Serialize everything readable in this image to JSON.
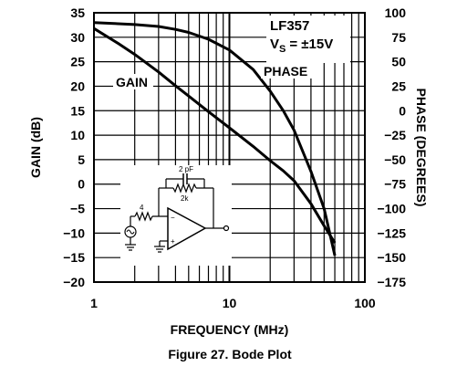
{
  "chart_data": {
    "type": "line",
    "title": "",
    "caption": "Figure 27. Bode Plot",
    "xlabel": "FREQUENCY (MHz)",
    "ylabel": "GAIN (dB)",
    "y2label": "PHASE (DEGREES)",
    "xscale": "log",
    "xlim": [
      1,
      100
    ],
    "ylim": [
      -20,
      35
    ],
    "y2lim": [
      -175,
      100
    ],
    "grid": true,
    "x_ticks": [
      "1",
      "10",
      "100"
    ],
    "y_ticks": [
      "35",
      "30",
      "25",
      "20",
      "15",
      "10",
      "5",
      "0",
      "-5",
      "-10",
      "-15",
      "-20"
    ],
    "y2_ticks": [
      "100",
      "75",
      "50",
      "25",
      "0",
      "-25",
      "-50",
      "-75",
      "-100",
      "-125",
      "-150",
      "-175"
    ],
    "annotations": {
      "device": "LF357",
      "supply_prefix": "V",
      "supply_sub": "S",
      "supply_value": "= ±15V",
      "schematic_cap": "2 pF",
      "schematic_rf": "2k",
      "schematic_rin": "4"
    },
    "series": [
      {
        "name": "GAIN",
        "axis": "left",
        "x": [
          1,
          1.5,
          2,
          3,
          4,
          5,
          7,
          10,
          15,
          20,
          25,
          30,
          40,
          50,
          60
        ],
        "y": [
          31.8,
          28.8,
          26.5,
          22.9,
          20.1,
          18.0,
          14.8,
          11.5,
          7.7,
          4.8,
          2.7,
          0.7,
          -4.0,
          -8.5,
          -12.0
        ]
      },
      {
        "name": "PHASE",
        "axis": "right",
        "x": [
          1,
          2,
          3,
          4,
          5,
          7,
          10,
          15,
          20,
          25,
          30,
          40,
          50,
          60
        ],
        "y": [
          90,
          88,
          86,
          83,
          80,
          73,
          62,
          42,
          20,
          0,
          -20,
          -62,
          -100,
          -148
        ]
      }
    ]
  }
}
